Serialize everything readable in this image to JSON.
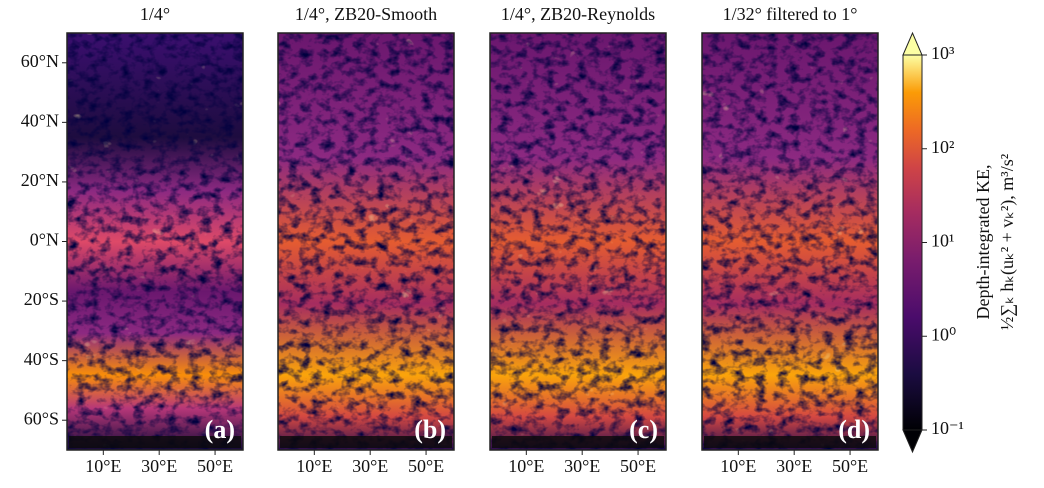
{
  "chart_data": [
    {
      "type": "heatmap",
      "title": "1/4°",
      "panel_label": "(a)",
      "xlim": [
        -3,
        60
      ],
      "xticks": [
        {
          "value": 10,
          "label": "10°E"
        },
        {
          "value": 30,
          "label": "30°E"
        },
        {
          "value": 50,
          "label": "50°E"
        }
      ],
      "ylim": [
        -70,
        70
      ],
      "yticks": [
        {
          "value": 60,
          "label": "60°N"
        },
        {
          "value": 40,
          "label": "40°N"
        },
        {
          "value": 20,
          "label": "20°N"
        },
        {
          "value": 0,
          "label": "0°N"
        },
        {
          "value": -20,
          "label": "20°S"
        },
        {
          "value": -40,
          "label": "40°S"
        },
        {
          "value": -60,
          "label": "60°S"
        }
      ]
    },
    {
      "type": "heatmap",
      "title": "1/4°, ZB20-Smooth",
      "panel_label": "(b)",
      "xlim": [
        -3,
        60
      ],
      "xticks": [
        {
          "value": 10,
          "label": "10°E"
        },
        {
          "value": 30,
          "label": "30°E"
        },
        {
          "value": 50,
          "label": "50°E"
        }
      ],
      "ylim": [
        -70,
        70
      ]
    },
    {
      "type": "heatmap",
      "title": "1/4°, ZB20-Reynolds",
      "panel_label": "(c)",
      "xlim": [
        -3,
        60
      ],
      "xticks": [
        {
          "value": 10,
          "label": "10°E"
        },
        {
          "value": 30,
          "label": "30°E"
        },
        {
          "value": 50,
          "label": "50°E"
        }
      ],
      "ylim": [
        -70,
        70
      ]
    },
    {
      "type": "heatmap",
      "title": "1/32° filtered to 1°",
      "panel_label": "(d)",
      "xlim": [
        -3,
        60
      ],
      "xticks": [
        {
          "value": 10,
          "label": "10°E"
        },
        {
          "value": 30,
          "label": "30°E"
        },
        {
          "value": 50,
          "label": "50°E"
        }
      ],
      "ylim": [
        -70,
        70
      ]
    },
    {
      "type": "colorbar",
      "label": [
        "Depth-integrated KE,",
        "½∑ₖ hₖ(uₖ² + vₖ²), m³/s²"
      ],
      "log_scale": true,
      "lim": [
        0.1,
        1000
      ],
      "ticks": [
        {
          "value": 0.1,
          "label": "10⁻¹"
        },
        {
          "value": 1,
          "label": "10⁰"
        },
        {
          "value": 10,
          "label": "10¹"
        },
        {
          "value": 100,
          "label": "10²"
        },
        {
          "value": 1000,
          "label": "10³"
        }
      ]
    }
  ]
}
